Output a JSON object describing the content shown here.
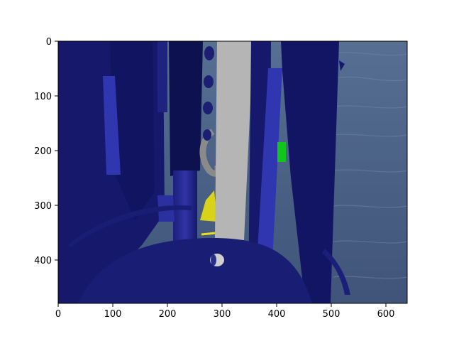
{
  "figure": {
    "x_ticks": [
      "0",
      "100",
      "200",
      "300",
      "400",
      "500",
      "600"
    ],
    "y_ticks": [
      "0",
      "100",
      "200",
      "300",
      "400"
    ]
  },
  "scene": {
    "floor_color": "#4b6285",
    "object_color": "#15186b",
    "highlight_color": "#2f36b0",
    "panel_color": "#b5b5b5",
    "accent_yellow": "#d9d21a",
    "accent_green": "#11c51b"
  }
}
